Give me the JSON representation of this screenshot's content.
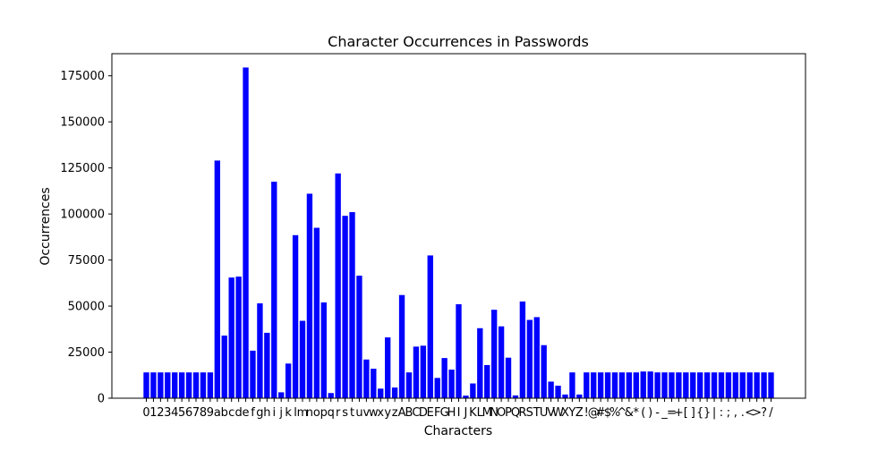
{
  "chart_data": {
    "type": "bar",
    "title": "Character Occurrences in Passwords",
    "xlabel": "Characters",
    "ylabel": "Occurrences",
    "ylim": [
      0,
      187000
    ],
    "yticks": [
      0,
      25000,
      50000,
      75000,
      100000,
      125000,
      150000,
      175000
    ],
    "ytick_labels": [
      "0",
      "25000",
      "50000",
      "75000",
      "100000",
      "125000",
      "150000",
      "175000"
    ],
    "grid": false,
    "legend": "none",
    "bar_color": "#0000ff",
    "categories": [
      "0",
      "1",
      "2",
      "3",
      "4",
      "5",
      "6",
      "7",
      "8",
      "9",
      "a",
      "b",
      "c",
      "d",
      "e",
      "f",
      "g",
      "h",
      "i",
      "j",
      "k",
      "l",
      "m",
      "n",
      "o",
      "p",
      "q",
      "r",
      "s",
      "t",
      "u",
      "v",
      "w",
      "x",
      "y",
      "z",
      "A",
      "B",
      "C",
      "D",
      "E",
      "F",
      "G",
      "H",
      "I",
      "J",
      "K",
      "L",
      "M",
      "N",
      "O",
      "P",
      "Q",
      "R",
      "S",
      "T",
      "U",
      "V",
      "W",
      "X",
      "Y",
      "Z",
      "!",
      "@",
      "#",
      "$",
      "%",
      "^",
      "&",
      "*",
      "(",
      ")",
      "-",
      "_",
      "=",
      "+",
      "[",
      "]",
      "{",
      "}",
      "|",
      ":",
      ";",
      ",",
      ".",
      "<",
      ">",
      "?",
      "/"
    ],
    "values": [
      14000,
      14000,
      14000,
      14000,
      14000,
      14000,
      14000,
      14000,
      14000,
      14000,
      129000,
      34000,
      65500,
      66000,
      179500,
      25800,
      51500,
      35500,
      117500,
      3200,
      18800,
      88500,
      42000,
      111000,
      92500,
      52000,
      2800,
      122000,
      99000,
      101000,
      66500,
      21000,
      16000,
      5200,
      33000,
      5800,
      56000,
      14000,
      28000,
      28500,
      77500,
      11000,
      21800,
      15500,
      51000,
      1400,
      8000,
      38000,
      18000,
      48000,
      39000,
      22000,
      1500,
      52500,
      42500,
      44000,
      28800,
      9000,
      6800,
      2000,
      14000,
      2000,
      14000,
      14000,
      14000,
      14000,
      14000,
      14000,
      14000,
      14000,
      14500,
      14500,
      14000,
      14000,
      14000,
      14000,
      14000,
      14000,
      14000,
      14000,
      14000,
      14000,
      14000,
      14000,
      14000,
      14000,
      14000,
      14000,
      14000
    ]
  }
}
